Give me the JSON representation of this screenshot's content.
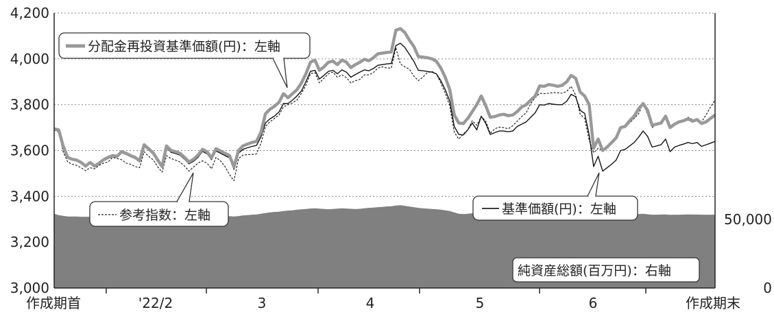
{
  "chart_data": {
    "type": "line",
    "x_tick_labels": [
      "作成期首",
      "'22/2",
      "3",
      "4",
      "5",
      "6",
      "作成期末"
    ],
    "y_left": {
      "ylim": [
        3000,
        4200
      ],
      "ticks": [
        "3,000",
        "3,200",
        "3,400",
        "3,600",
        "3,800",
        "4,000",
        "4,200"
      ]
    },
    "y_right": {
      "ylim": [
        0,
        200000
      ],
      "ticks": [
        "0",
        "50,000"
      ]
    },
    "grid": "horizontal-dotted",
    "series": [
      {
        "name": "分配金再投資基準価額(円)：左軸",
        "axis": "left",
        "color": "#999999",
        "values": [
          3695,
          3690,
          3620,
          3570,
          3562,
          3558,
          3548,
          3532,
          3548,
          3532,
          3545,
          3560,
          3570,
          3578,
          3575,
          3595,
          3588,
          3578,
          3570,
          3555,
          3625,
          3608,
          3590,
          3560,
          3530,
          3620,
          3600,
          3595,
          3588,
          3570,
          3550,
          3562,
          3580,
          3605,
          3595,
          3568,
          3608,
          3598,
          3588,
          3578,
          3528,
          3600,
          3620,
          3628,
          3635,
          3640,
          3680,
          3760,
          3780,
          3793,
          3810,
          3848,
          3830,
          3848,
          3865,
          3895,
          3935,
          3985,
          3995,
          3950,
          3965,
          3985,
          3990,
          3975,
          3995,
          3985,
          3962,
          3975,
          3985,
          3998,
          3992,
          4005,
          4022,
          4025,
          4028,
          4030,
          4125,
          4132,
          4115,
          4082,
          4055,
          4010,
          4008,
          4005,
          4000,
          3990,
          3960,
          3920,
          3865,
          3755,
          3720,
          3718,
          3740,
          3770,
          3800,
          3838,
          3795,
          3745,
          3748,
          3755,
          3758,
          3752,
          3755,
          3770,
          3790,
          3800,
          3820,
          3838,
          3882,
          3880,
          3888,
          3885,
          3880,
          3885,
          3900,
          3928,
          3915,
          3855,
          3838,
          3800,
          3610,
          3650,
          3600,
          3615,
          3635,
          3655,
          3700,
          3705,
          3730,
          3750,
          3782,
          3805,
          3775,
          3710,
          3715,
          3720,
          3750,
          3700,
          3715,
          3725,
          3730,
          3738,
          3728,
          3735,
          3718,
          3725,
          3740,
          3755
        ]
      },
      {
        "name": "基準価額(円)：左軸",
        "axis": "left",
        "color": "#111111",
        "values": [
          3690,
          3685,
          3615,
          3567,
          3560,
          3555,
          3545,
          3530,
          3545,
          3528,
          3540,
          3555,
          3565,
          3573,
          3570,
          3590,
          3583,
          3573,
          3565,
          3550,
          3618,
          3602,
          3585,
          3555,
          3525,
          3612,
          3592,
          3587,
          3580,
          3562,
          3542,
          3553,
          3570,
          3596,
          3586,
          3560,
          3598,
          3588,
          3578,
          3568,
          3518,
          3588,
          3605,
          3612,
          3618,
          3622,
          3660,
          3720,
          3738,
          3750,
          3768,
          3805,
          3805,
          3820,
          3838,
          3860,
          3900,
          3945,
          3950,
          3912,
          3928,
          3945,
          3950,
          3935,
          3952,
          3942,
          3920,
          3932,
          3942,
          3952,
          3948,
          3958,
          3972,
          3975,
          3978,
          3980,
          4058,
          4068,
          4050,
          4020,
          3990,
          3950,
          3948,
          3945,
          3942,
          3935,
          3905,
          3865,
          3815,
          3705,
          3670,
          3668,
          3690,
          3720,
          3690,
          3750,
          3718,
          3670,
          3678,
          3685,
          3685,
          3682,
          3685,
          3705,
          3715,
          3725,
          3745,
          3765,
          3800,
          3798,
          3805,
          3802,
          3800,
          3800,
          3815,
          3845,
          3835,
          3775,
          3762,
          3668,
          3530,
          3575,
          3510,
          3525,
          3540,
          3558,
          3600,
          3605,
          3620,
          3635,
          3658,
          3685,
          3662,
          3615,
          3620,
          3625,
          3650,
          3595,
          3615,
          3622,
          3628,
          3635,
          3630,
          3635,
          3618,
          3625,
          3632,
          3640
        ]
      },
      {
        "name": "参考指数：左軸",
        "axis": "left",
        "color": "#111111",
        "dashed": true,
        "values": [
          3690,
          3680,
          3595,
          3550,
          3540,
          3535,
          3525,
          3512,
          3525,
          3520,
          3535,
          3545,
          3550,
          3570,
          3565,
          3560,
          3545,
          3540,
          3530,
          3525,
          3595,
          3575,
          3560,
          3530,
          3505,
          3578,
          3565,
          3558,
          3550,
          3532,
          3510,
          3528,
          3545,
          3555,
          3545,
          3520,
          3570,
          3555,
          3530,
          3495,
          3468,
          3565,
          3580,
          3582,
          3583,
          3585,
          3632,
          3705,
          3725,
          3740,
          3755,
          3790,
          3800,
          3808,
          3820,
          3850,
          3885,
          3935,
          3940,
          3895,
          3915,
          3935,
          3942,
          3920,
          3930,
          3918,
          3895,
          3905,
          3910,
          3930,
          3930,
          3940,
          3960,
          3965,
          3960,
          3960,
          4048,
          3978,
          3965,
          3955,
          3925,
          3905,
          3920,
          3940,
          3945,
          3935,
          3895,
          3850,
          3795,
          3680,
          3650,
          3672,
          3690,
          3730,
          3710,
          3748,
          3728,
          3675,
          3695,
          3702,
          3700,
          3695,
          3708,
          3728,
          3748,
          3765,
          3805,
          3830,
          3850,
          3848,
          3850,
          3853,
          3852,
          3850,
          3858,
          3880,
          3842,
          3758,
          3740,
          3645,
          3590,
          3610,
          3600,
          3615,
          3640,
          3655,
          3695,
          3705,
          3720,
          3740,
          3760,
          3805,
          3758,
          3700,
          3715,
          3720,
          3745,
          3695,
          3720,
          3725,
          3735,
          3745,
          3735,
          3735,
          3725,
          3755,
          3790,
          3820
        ]
      },
      {
        "name": "純資産総額(百万円)：右軸",
        "axis": "right",
        "type": "area",
        "color": "#808080",
        "values": [
          54000,
          53000,
          52500,
          52000,
          52000,
          52000,
          51800,
          51800,
          51800,
          51800,
          52000,
          52200,
          52500,
          52300,
          52000,
          52000,
          51800,
          52000,
          52200,
          52500,
          52500,
          52300,
          52000,
          52000,
          52000,
          52300,
          52500,
          52500,
          52000,
          52000,
          52000,
          52300,
          52500,
          52700,
          52600,
          52300,
          52000,
          52000,
          52000,
          52200,
          52000,
          52300,
          52800,
          53000,
          53300,
          53500,
          54000,
          54500,
          55000,
          55300,
          55500,
          56000,
          56300,
          56500,
          57000,
          57200,
          57500,
          57800,
          58000,
          57700,
          57500,
          57300,
          57500,
          57700,
          58000,
          57800,
          57600,
          57400,
          57600,
          58000,
          58300,
          58500,
          58800,
          59000,
          59300,
          59500,
          60000,
          60200,
          59800,
          59300,
          58800,
          58300,
          58000,
          57700,
          57500,
          57300,
          57000,
          56500,
          56000,
          55000,
          54000,
          53800,
          54000,
          54300,
          54500,
          55000,
          54800,
          54300,
          54300,
          54500,
          54600,
          54500,
          54600,
          54800,
          55000,
          55200,
          55300,
          55500,
          56000,
          56000,
          56100,
          56100,
          56000,
          56000,
          56200,
          56400,
          56300,
          55800,
          55500,
          54500,
          52000,
          52500,
          52000,
          52300,
          52500,
          52700,
          53000,
          53200,
          53400,
          53600,
          53800,
          54000,
          53600,
          53300,
          53300,
          53400,
          53500,
          53200,
          53300,
          53300,
          53400,
          53500,
          53400,
          53400,
          53300,
          53300,
          53300,
          53300
        ]
      }
    ],
    "legend_labels": {
      "nav_reinvested": "分配金再投資基準価額(円)：左軸",
      "reference_index": "参考指数：左軸",
      "nav": "基準価額(円)：左軸",
      "net_assets": "純資産総額(百万円)：右軸"
    }
  }
}
